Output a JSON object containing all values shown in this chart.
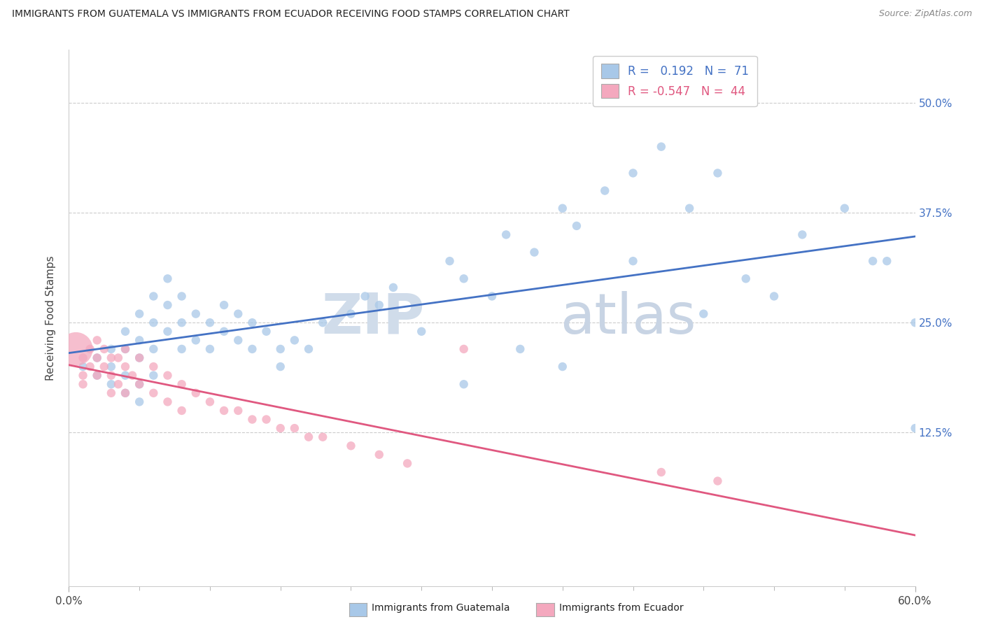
{
  "title": "IMMIGRANTS FROM GUATEMALA VS IMMIGRANTS FROM ECUADOR RECEIVING FOOD STAMPS CORRELATION CHART",
  "source": "Source: ZipAtlas.com",
  "ylabel": "Receiving Food Stamps",
  "ytick_labels": [
    "50.0%",
    "37.5%",
    "25.0%",
    "12.5%"
  ],
  "ytick_values": [
    0.5,
    0.375,
    0.25,
    0.125
  ],
  "xmin": 0.0,
  "xmax": 0.6,
  "ymin": -0.05,
  "ymax": 0.56,
  "guatemala_color": "#a8c8e8",
  "ecuador_color": "#f4a8be",
  "guatemala_line_color": "#4472c4",
  "ecuador_line_color": "#e05880",
  "watermark_zip": "ZIP",
  "watermark_atlas": "atlas",
  "legend_label_1": "R =   0.192   N =  71",
  "legend_label_2": "R = -0.547   N =  44",
  "guatemala_scatter_x": [
    0.01,
    0.02,
    0.02,
    0.03,
    0.03,
    0.03,
    0.04,
    0.04,
    0.04,
    0.04,
    0.05,
    0.05,
    0.05,
    0.05,
    0.05,
    0.06,
    0.06,
    0.06,
    0.06,
    0.07,
    0.07,
    0.07,
    0.08,
    0.08,
    0.08,
    0.09,
    0.09,
    0.1,
    0.1,
    0.11,
    0.11,
    0.12,
    0.12,
    0.13,
    0.13,
    0.14,
    0.15,
    0.15,
    0.16,
    0.17,
    0.18,
    0.2,
    0.21,
    0.22,
    0.23,
    0.25,
    0.27,
    0.28,
    0.3,
    0.31,
    0.33,
    0.35,
    0.36,
    0.38,
    0.4,
    0.42,
    0.44,
    0.46,
    0.48,
    0.52,
    0.55,
    0.58,
    0.6,
    0.6,
    0.57,
    0.5,
    0.45,
    0.4,
    0.35,
    0.32,
    0.28
  ],
  "guatemala_scatter_y": [
    0.2,
    0.21,
    0.19,
    0.22,
    0.2,
    0.18,
    0.24,
    0.22,
    0.19,
    0.17,
    0.26,
    0.23,
    0.21,
    0.18,
    0.16,
    0.28,
    0.25,
    0.22,
    0.19,
    0.3,
    0.27,
    0.24,
    0.28,
    0.25,
    0.22,
    0.26,
    0.23,
    0.25,
    0.22,
    0.27,
    0.24,
    0.26,
    0.23,
    0.25,
    0.22,
    0.24,
    0.22,
    0.2,
    0.23,
    0.22,
    0.25,
    0.26,
    0.28,
    0.27,
    0.29,
    0.24,
    0.32,
    0.3,
    0.28,
    0.35,
    0.33,
    0.38,
    0.36,
    0.4,
    0.42,
    0.45,
    0.38,
    0.42,
    0.3,
    0.35,
    0.38,
    0.32,
    0.25,
    0.13,
    0.32,
    0.28,
    0.26,
    0.32,
    0.2,
    0.22,
    0.18
  ],
  "guatemala_scatter_size": [
    80,
    80,
    80,
    80,
    80,
    80,
    80,
    80,
    80,
    80,
    80,
    80,
    80,
    80,
    80,
    80,
    80,
    80,
    80,
    80,
    80,
    80,
    80,
    80,
    80,
    80,
    80,
    80,
    80,
    80,
    80,
    80,
    80,
    80,
    80,
    80,
    80,
    80,
    80,
    80,
    80,
    80,
    80,
    80,
    80,
    80,
    80,
    80,
    80,
    80,
    80,
    80,
    80,
    80,
    80,
    80,
    80,
    80,
    80,
    80,
    80,
    80,
    80,
    80,
    80,
    80,
    80,
    80,
    80,
    80,
    80
  ],
  "ecuador_scatter_x": [
    0.005,
    0.01,
    0.01,
    0.01,
    0.015,
    0.015,
    0.02,
    0.02,
    0.02,
    0.025,
    0.025,
    0.03,
    0.03,
    0.03,
    0.035,
    0.035,
    0.04,
    0.04,
    0.04,
    0.045,
    0.05,
    0.05,
    0.06,
    0.06,
    0.07,
    0.07,
    0.08,
    0.08,
    0.09,
    0.1,
    0.11,
    0.12,
    0.13,
    0.14,
    0.15,
    0.16,
    0.17,
    0.18,
    0.2,
    0.22,
    0.24,
    0.28,
    0.42,
    0.46
  ],
  "ecuador_scatter_y": [
    0.22,
    0.21,
    0.19,
    0.18,
    0.22,
    0.2,
    0.23,
    0.21,
    0.19,
    0.22,
    0.2,
    0.21,
    0.19,
    0.17,
    0.21,
    0.18,
    0.22,
    0.2,
    0.17,
    0.19,
    0.21,
    0.18,
    0.2,
    0.17,
    0.19,
    0.16,
    0.18,
    0.15,
    0.17,
    0.16,
    0.15,
    0.15,
    0.14,
    0.14,
    0.13,
    0.13,
    0.12,
    0.12,
    0.11,
    0.1,
    0.09,
    0.22,
    0.08,
    0.07
  ],
  "ecuador_scatter_size": [
    1200,
    80,
    80,
    80,
    80,
    80,
    80,
    80,
    80,
    80,
    80,
    80,
    80,
    80,
    80,
    80,
    80,
    80,
    80,
    80,
    80,
    80,
    80,
    80,
    80,
    80,
    80,
    80,
    80,
    80,
    80,
    80,
    80,
    80,
    80,
    80,
    80,
    80,
    80,
    80,
    80,
    80,
    80,
    80
  ]
}
